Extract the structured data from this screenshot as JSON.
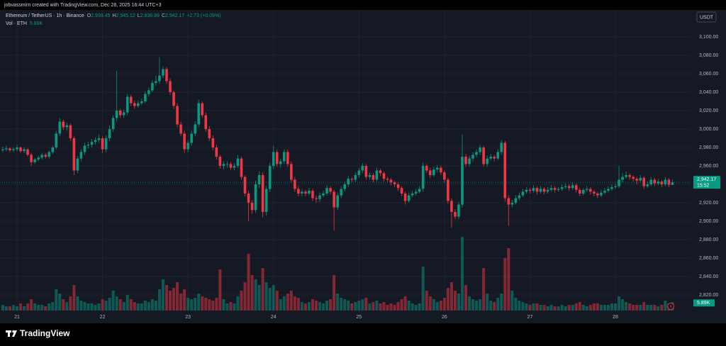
{
  "header": {
    "created": "jobvassmirn created with TradingView.com, Dec 28, 2025 16:44 UTC+3"
  },
  "footer": {
    "logo": "TradingView"
  },
  "chart_data": {
    "type": "candlestick",
    "symbol": "Ethereum / TetherUS · 1h · Binance",
    "volume_title": "Vol · ETH",
    "currency": "USDT",
    "countdown": "15:52",
    "legend": {
      "open_key": "O",
      "open": "2,939.45",
      "high_key": "H",
      "high": "2,945.12",
      "low_key": "L",
      "low": "2,938.99",
      "close_key": "C",
      "close": "2,942.17",
      "change": "+2.73 (+0.09%)",
      "volume": "5.89K"
    },
    "up_color": "#089981",
    "down_color": "#f23645",
    "grid": true,
    "ylim": [
      2801.5,
      3132.3
    ],
    "yticks": [
      {
        "value": 2820,
        "label": "2,820.00"
      },
      {
        "value": 2840,
        "label": "2,840.00"
      },
      {
        "value": 2860,
        "label": "2,860.00"
      },
      {
        "value": 2880,
        "label": "2,880.00"
      },
      {
        "value": 2900,
        "label": "2,900.00"
      },
      {
        "value": 2920,
        "label": "2,920.00"
      },
      {
        "value": 2940,
        "label": "2,940.00"
      },
      {
        "value": 2960,
        "label": "2,960.00"
      },
      {
        "value": 2980,
        "label": "2,980.00"
      },
      {
        "value": 3000,
        "label": "3,000.00"
      },
      {
        "value": 3020,
        "label": "3,020.00"
      },
      {
        "value": 3040,
        "label": "3,040.00"
      },
      {
        "value": 3060,
        "label": "3,060.00"
      },
      {
        "value": 3080,
        "label": "3,080.00"
      },
      {
        "value": 3100,
        "label": "3,100.00"
      }
    ],
    "xtick_labels": [
      "21",
      "22",
      "23",
      "24",
      "25",
      "26",
      "27",
      "28"
    ],
    "candles": [
      [
        2977,
        2981,
        2975,
        2978,
        4
      ],
      [
        2978,
        2982,
        2976,
        2979,
        3
      ],
      [
        2979,
        2980,
        2975,
        2977,
        3
      ],
      [
        2977,
        2980,
        2975,
        2978,
        4
      ],
      [
        2978,
        2983,
        2976,
        2980,
        3
      ],
      [
        2980,
        2981,
        2974,
        2976,
        5
      ],
      [
        2976,
        2980,
        2974,
        2978,
        3
      ],
      [
        2978,
        2979,
        2970,
        2972,
        5
      ],
      [
        2972,
        2974,
        2960,
        2964,
        8
      ],
      [
        2964,
        2969,
        2962,
        2967,
        5
      ],
      [
        2967,
        2971,
        2965,
        2969,
        4
      ],
      [
        2969,
        2974,
        2967,
        2972,
        4
      ],
      [
        2972,
        2974,
        2968,
        2970,
        3
      ],
      [
        2970,
        2977,
        2968,
        2975,
        5
      ],
      [
        2975,
        2982,
        2973,
        2980,
        6
      ],
      [
        2980,
        2998,
        2978,
        2995,
        15
      ],
      [
        2995,
        3012,
        2992,
        3008,
        12
      ],
      [
        3008,
        3010,
        2999,
        3002,
        8
      ],
      [
        3002,
        3007,
        2998,
        3004,
        6
      ],
      [
        3004,
        3006,
        2987,
        2990,
        10
      ],
      [
        2990,
        2992,
        2950,
        2955,
        18
      ],
      [
        2955,
        2971,
        2952,
        2968,
        10
      ],
      [
        2968,
        2978,
        2965,
        2975,
        7
      ],
      [
        2975,
        2985,
        2972,
        2982,
        6
      ],
      [
        2982,
        2986,
        2979,
        2983,
        5
      ],
      [
        2983,
        2989,
        2980,
        2986,
        5
      ],
      [
        2986,
        2991,
        2983,
        2988,
        4
      ],
      [
        2988,
        2994,
        2985,
        2990,
        5
      ],
      [
        2990,
        2992,
        2974,
        2978,
        8
      ],
      [
        2978,
        2993,
        2975,
        2990,
        7
      ],
      [
        2990,
        3004,
        2987,
        3000,
        9
      ],
      [
        3000,
        3015,
        2997,
        3012,
        14
      ],
      [
        3012,
        3063,
        3008,
        3020,
        10
      ],
      [
        3020,
        3022,
        3012,
        3015,
        8
      ],
      [
        3015,
        3021,
        3012,
        3018,
        6
      ],
      [
        3018,
        3038,
        3015,
        3035,
        11
      ],
      [
        3035,
        3037,
        3025,
        3028,
        8
      ],
      [
        3028,
        3031,
        3022,
        3025,
        6
      ],
      [
        3025,
        3031,
        3023,
        3028,
        5
      ],
      [
        3028,
        3033,
        3026,
        3030,
        5
      ],
      [
        3030,
        3041,
        3028,
        3038,
        7
      ],
      [
        3038,
        3045,
        3035,
        3042,
        6
      ],
      [
        3042,
        3053,
        3040,
        3050,
        8
      ],
      [
        3050,
        3058,
        3047,
        3052,
        7
      ],
      [
        3052,
        3078,
        3049,
        3058,
        15
      ],
      [
        3058,
        3068,
        3055,
        3065,
        22
      ],
      [
        3065,
        3067,
        3049,
        3052,
        18
      ],
      [
        3052,
        3055,
        3037,
        3040,
        14
      ],
      [
        3040,
        3042,
        3022,
        3025,
        16
      ],
      [
        3025,
        3028,
        3002,
        3005,
        20
      ],
      [
        3005,
        3008,
        2992,
        2995,
        12
      ],
      [
        2995,
        2998,
        2974,
        2978,
        15
      ],
      [
        2978,
        2988,
        2975,
        2985,
        9
      ],
      [
        2985,
        2998,
        2982,
        2995,
        8
      ],
      [
        2995,
        3008,
        2992,
        3005,
        9
      ],
      [
        3005,
        3032,
        3002,
        3028,
        12
      ],
      [
        3028,
        3030,
        3012,
        3015,
        10
      ],
      [
        3015,
        3018,
        2997,
        3000,
        9
      ],
      [
        3000,
        3003,
        2987,
        2990,
        8
      ],
      [
        2990,
        2993,
        2977,
        2980,
        7
      ],
      [
        2980,
        2983,
        2967,
        2970,
        9
      ],
      [
        2970,
        2972,
        2957,
        2960,
        29
      ],
      [
        2960,
        2965,
        2956,
        2962,
        8
      ],
      [
        2962,
        2965,
        2958,
        2962,
        5
      ],
      [
        2962,
        2964,
        2955,
        2958,
        6
      ],
      [
        2958,
        2963,
        2955,
        2960,
        5
      ],
      [
        2960,
        2972,
        2958,
        2968,
        10
      ],
      [
        2968,
        2970,
        2945,
        2948,
        14
      ],
      [
        2948,
        2950,
        2927,
        2930,
        20
      ],
      [
        2930,
        2933,
        2900,
        2920,
        40
      ],
      [
        2920,
        2923,
        2908,
        2912,
        25
      ],
      [
        2912,
        2944,
        2909,
        2940,
        22
      ],
      [
        2940,
        2954,
        2936,
        2950,
        18
      ],
      [
        2950,
        2953,
        2904,
        2910,
        30
      ],
      [
        2910,
        2938,
        2906,
        2935,
        20
      ],
      [
        2935,
        2964,
        2932,
        2960,
        16
      ],
      [
        2960,
        2982,
        2957,
        2975,
        18
      ],
      [
        2975,
        2978,
        2959,
        2962,
        14
      ],
      [
        2962,
        2968,
        2958,
        2965,
        8
      ],
      [
        2965,
        2978,
        2962,
        2975,
        10
      ],
      [
        2975,
        2978,
        2959,
        2962,
        12
      ],
      [
        2962,
        2965,
        2942,
        2945,
        14
      ],
      [
        2945,
        2948,
        2932,
        2935,
        10
      ],
      [
        2935,
        2938,
        2927,
        2930,
        9
      ],
      [
        2930,
        2935,
        2927,
        2932,
        6
      ],
      [
        2932,
        2934,
        2927,
        2930,
        5
      ],
      [
        2930,
        2936,
        2928,
        2933,
        6
      ],
      [
        2933,
        2935,
        2922,
        2925,
        8
      ],
      [
        2925,
        2928,
        2920,
        2924,
        7
      ],
      [
        2924,
        2931,
        2921,
        2928,
        6
      ],
      [
        2928,
        2933,
        2926,
        2930,
        5
      ],
      [
        2930,
        2939,
        2928,
        2936,
        7
      ],
      [
        2936,
        2938,
        2929,
        2932,
        8
      ],
      [
        2932,
        2934,
        2890,
        2915,
        25
      ],
      [
        2915,
        2931,
        2912,
        2928,
        12
      ],
      [
        2928,
        2938,
        2925,
        2935,
        9
      ],
      [
        2935,
        2943,
        2932,
        2940,
        8
      ],
      [
        2940,
        2949,
        2937,
        2946,
        7
      ],
      [
        2946,
        2948,
        2942,
        2945,
        5
      ],
      [
        2945,
        2953,
        2942,
        2950,
        6
      ],
      [
        2950,
        2958,
        2947,
        2955,
        7
      ],
      [
        2955,
        2963,
        2952,
        2960,
        8
      ],
      [
        2960,
        2962,
        2945,
        2948,
        9
      ],
      [
        2948,
        2953,
        2945,
        2950,
        5
      ],
      [
        2950,
        2952,
        2942,
        2945,
        6
      ],
      [
        2945,
        2958,
        2943,
        2955,
        7
      ],
      [
        2955,
        2957,
        2949,
        2952,
        5
      ],
      [
        2952,
        2954,
        2943,
        2946,
        6
      ],
      [
        2946,
        2948,
        2942,
        2945,
        4
      ],
      [
        2945,
        2947,
        2939,
        2942,
        5
      ],
      [
        2942,
        2944,
        2937,
        2940,
        4
      ],
      [
        2940,
        2942,
        2933,
        2936,
        6
      ],
      [
        2936,
        2938,
        2927,
        2930,
        8
      ],
      [
        2930,
        2932,
        2918,
        2922,
        10
      ],
      [
        2922,
        2931,
        2920,
        2928,
        7
      ],
      [
        2928,
        2933,
        2926,
        2930,
        5
      ],
      [
        2930,
        2935,
        2928,
        2932,
        4
      ],
      [
        2932,
        2938,
        2930,
        2935,
        5
      ],
      [
        2935,
        2964,
        2932,
        2960,
        31
      ],
      [
        2960,
        2962,
        2952,
        2955,
        14
      ],
      [
        2955,
        2958,
        2947,
        2950,
        10
      ],
      [
        2950,
        2959,
        2948,
        2956,
        8
      ],
      [
        2956,
        2961,
        2953,
        2958,
        6
      ],
      [
        2958,
        2960,
        2950,
        2953,
        7
      ],
      [
        2953,
        2955,
        2942,
        2945,
        9
      ],
      [
        2945,
        2947,
        2919,
        2922,
        16
      ],
      [
        2922,
        2925,
        2893,
        2910,
        20
      ],
      [
        2910,
        2913,
        2902,
        2905,
        14
      ],
      [
        2905,
        2921,
        2902,
        2918,
        12
      ],
      [
        2918,
        2994,
        2915,
        2970,
        52
      ],
      [
        2970,
        2973,
        2959,
        2962,
        18
      ],
      [
        2962,
        2971,
        2959,
        2968,
        10
      ],
      [
        2968,
        2975,
        2965,
        2972,
        8
      ],
      [
        2972,
        2978,
        2969,
        2975,
        7
      ],
      [
        2975,
        2983,
        2972,
        2980,
        8
      ],
      [
        2980,
        2982,
        2959,
        2962,
        30
      ],
      [
        2962,
        2971,
        2959,
        2968,
        12
      ],
      [
        2968,
        2973,
        2966,
        2970,
        7
      ],
      [
        2970,
        2972,
        2965,
        2968,
        6
      ],
      [
        2968,
        2978,
        2966,
        2975,
        9
      ],
      [
        2975,
        2988,
        2972,
        2985,
        12
      ],
      [
        2985,
        2987,
        2921,
        2925,
        37
      ],
      [
        2925,
        2928,
        2895,
        2918,
        44
      ],
      [
        2918,
        2923,
        2915,
        2920,
        14
      ],
      [
        2920,
        2928,
        2918,
        2925,
        9
      ],
      [
        2925,
        2931,
        2923,
        2928,
        7
      ],
      [
        2928,
        2935,
        2926,
        2932,
        6
      ],
      [
        2932,
        2937,
        2930,
        2934,
        5
      ],
      [
        2934,
        2936,
        2930,
        2933,
        4
      ],
      [
        2933,
        2939,
        2931,
        2936,
        5
      ],
      [
        2936,
        2938,
        2929,
        2932,
        5
      ],
      [
        2932,
        2938,
        2930,
        2935,
        4
      ],
      [
        2935,
        2937,
        2929,
        2932,
        4
      ],
      [
        2932,
        2937,
        2930,
        2934,
        3
      ],
      [
        2934,
        2939,
        2932,
        2936,
        4
      ],
      [
        2936,
        2938,
        2931,
        2934,
        3
      ],
      [
        2934,
        2937,
        2932,
        2935,
        3
      ],
      [
        2935,
        2940,
        2933,
        2937,
        4
      ],
      [
        2937,
        2941,
        2935,
        2938,
        3
      ],
      [
        2938,
        2940,
        2933,
        2936,
        4
      ],
      [
        2936,
        2942,
        2934,
        2939,
        4
      ],
      [
        2939,
        2941,
        2931,
        2934,
        5
      ],
      [
        2934,
        2936,
        2927,
        2930,
        6
      ],
      [
        2930,
        2936,
        2928,
        2934,
        4
      ],
      [
        2934,
        2938,
        2932,
        2935,
        3
      ],
      [
        2935,
        2937,
        2929,
        2932,
        4
      ],
      [
        2932,
        2934,
        2927,
        2930,
        5
      ],
      [
        2930,
        2932,
        2925,
        2928,
        5
      ],
      [
        2928,
        2934,
        2926,
        2931,
        4
      ],
      [
        2931,
        2936,
        2929,
        2933,
        4
      ],
      [
        2933,
        2938,
        2931,
        2935,
        4
      ],
      [
        2935,
        2940,
        2933,
        2937,
        5
      ],
      [
        2937,
        2941,
        2935,
        2938,
        5
      ],
      [
        2938,
        2960,
        2936,
        2945,
        10
      ],
      [
        2945,
        2952,
        2942,
        2948,
        8
      ],
      [
        2948,
        2954,
        2946,
        2950,
        6
      ],
      [
        2950,
        2952,
        2945,
        2948,
        5
      ],
      [
        2948,
        2950,
        2943,
        2946,
        4
      ],
      [
        2946,
        2948,
        2940,
        2944,
        4
      ],
      [
        2944,
        2950,
        2942,
        2947,
        4
      ],
      [
        2947,
        2949,
        2935,
        2938,
        6
      ],
      [
        2938,
        2943,
        2936,
        2940,
        4
      ],
      [
        2940,
        2948,
        2938,
        2945,
        4
      ],
      [
        2945,
        2947,
        2938,
        2941,
        4
      ],
      [
        2941,
        2946,
        2939,
        2943,
        3
      ],
      [
        2943,
        2945,
        2937,
        2940,
        4
      ],
      [
        2940,
        2948,
        2938,
        2945,
        7
      ],
      [
        2945,
        2947,
        2937,
        2939.45,
        5
      ],
      [
        2939.45,
        2945.12,
        2938.99,
        2942.17,
        5.89
      ]
    ]
  }
}
